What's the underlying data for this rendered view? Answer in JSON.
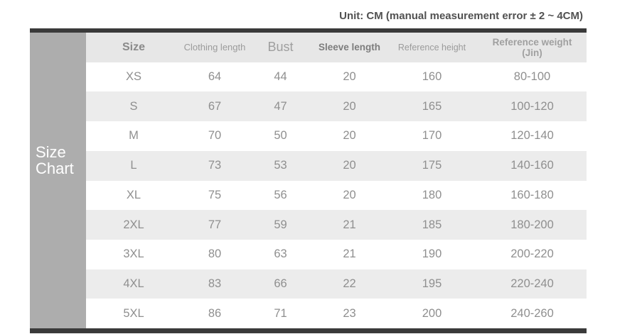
{
  "unit_note": "Unit: CM (manual measurement error ± 2 ~ 4CM)",
  "sidebar_title": "Size\nChart",
  "colors": {
    "bar": "#3a3a3a",
    "sidebar_bg": "#adadad",
    "header_bg": "#e7e7e7",
    "stripe_bg": "#ececec",
    "text_gray": "#8f8f8f",
    "note_text": "#515151",
    "sidebar_text": "#ffffff"
  },
  "chart_data": {
    "type": "table",
    "title": "Size Chart",
    "unit_note": "Unit: CM (manual measurement error ± 2 ~ 4CM)",
    "columns": [
      "Size",
      "Clothing length",
      "Bust",
      "Sleeve length",
      "Reference height",
      "Reference weight\n(Jin)"
    ],
    "rows": [
      [
        "XS",
        "64",
        "44",
        "20",
        "160",
        "80-100"
      ],
      [
        "S",
        "67",
        "47",
        "20",
        "165",
        "100-120"
      ],
      [
        "M",
        "70",
        "50",
        "20",
        "170",
        "120-140"
      ],
      [
        "L",
        "73",
        "53",
        "20",
        "175",
        "140-160"
      ],
      [
        "XL",
        "75",
        "56",
        "20",
        "180",
        "160-180"
      ],
      [
        "2XL",
        "77",
        "59",
        "21",
        "185",
        "180-200"
      ],
      [
        "3XL",
        "80",
        "63",
        "21",
        "190",
        "200-220"
      ],
      [
        "4XL",
        "83",
        "66",
        "22",
        "195",
        "220-240"
      ],
      [
        "5XL",
        "86",
        "71",
        "23",
        "200",
        "240-260"
      ]
    ],
    "layout": {
      "striped_rows": true,
      "stripe_pattern": "even data rows white, odd gray"
    }
  }
}
